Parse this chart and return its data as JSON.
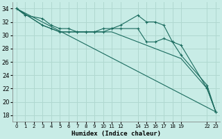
{
  "xlabel": "Humidex (Indice chaleur)",
  "background_color": "#c8ece6",
  "grid_color": "#b0d8d0",
  "line_color": "#1a6b5e",
  "ylim": [
    17,
    35
  ],
  "yticks": [
    18,
    20,
    22,
    24,
    26,
    28,
    30,
    32,
    34
  ],
  "xtick_positions": [
    0,
    1,
    2,
    3,
    4,
    5,
    6,
    7,
    8,
    9,
    10,
    11,
    12,
    14,
    15,
    16,
    17,
    18,
    19,
    22,
    23
  ],
  "xtick_labels": [
    "0",
    "1",
    "2",
    "3",
    "4",
    "5",
    "6",
    "7",
    "8",
    "9",
    "10",
    "11",
    "12",
    "14",
    "15",
    "16",
    "17",
    "18",
    "19",
    "22",
    "23"
  ],
  "xlim": [
    -0.5,
    23.5
  ],
  "series": [
    {
      "x": [
        0,
        1,
        3,
        4,
        5,
        6,
        7,
        8,
        9,
        10,
        11,
        12,
        14,
        15,
        16,
        17,
        18,
        19,
        22,
        23
      ],
      "y": [
        34,
        33,
        32.5,
        31.5,
        31,
        31,
        30.5,
        30.5,
        30.5,
        31,
        31,
        31.5,
        33,
        32,
        32,
        31.5,
        29,
        27,
        22.5,
        18.5
      ],
      "marker": "+"
    },
    {
      "x": [
        0,
        3,
        4,
        5,
        6,
        7,
        8,
        9,
        10,
        11,
        12,
        14,
        15,
        16,
        17,
        18,
        19,
        22,
        23
      ],
      "y": [
        34,
        31.5,
        31,
        30.5,
        30.5,
        30.5,
        30.5,
        30.5,
        30.5,
        31,
        31,
        31,
        29,
        29,
        29.5,
        29,
        28.5,
        22,
        18.5
      ],
      "marker": "+"
    },
    {
      "x": [
        0,
        3,
        4,
        5,
        6,
        7,
        8,
        9,
        10,
        11,
        19,
        22,
        23
      ],
      "y": [
        34,
        31.5,
        31,
        30.5,
        30.5,
        30.5,
        30.5,
        30.5,
        30.5,
        30.5,
        26.5,
        22,
        18.5
      ],
      "marker": null
    },
    {
      "x": [
        0,
        23
      ],
      "y": [
        34,
        18.5
      ],
      "marker": null
    }
  ]
}
